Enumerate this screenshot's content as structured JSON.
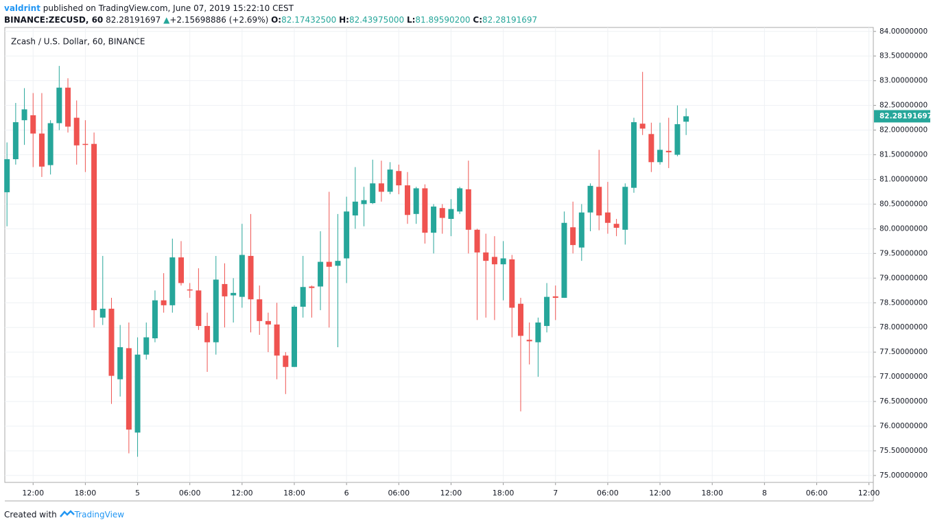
{
  "header": {
    "user": "valdrint",
    "published": "published on TradingView.com, June 07, 2019 15:22:10 CEST"
  },
  "quote": {
    "symbol": "BINANCE:ZECUSD, 60",
    "last": "82.28191697",
    "arrow": "▲",
    "change": "+2.15698886 (+2.69%)",
    "o_label": "O:",
    "o": "82.17432500",
    "h_label": "H:",
    "h": "82.43975000",
    "l_label": "L:",
    "l": "81.89590200",
    "c_label": "C:",
    "c": "82.28191697"
  },
  "footer": {
    "created": "Created with",
    "brand": "TradingView"
  },
  "chart_data": {
    "type": "candlestick",
    "title": "Zcash / U.S. Dollar, 60, BINANCE",
    "up_color": "#26a69a",
    "down_color": "#ef5350",
    "grid": true,
    "price_label": "82.28191697",
    "xlim": [
      -0.25,
      99.5
    ],
    "xticks": [
      {
        "value": 3,
        "label": "12:00"
      },
      {
        "value": 9,
        "label": "18:00"
      },
      {
        "value": 15,
        "label": "5"
      },
      {
        "value": 21,
        "label": "06:00"
      },
      {
        "value": 27,
        "label": "12:00"
      },
      {
        "value": 33,
        "label": "18:00"
      },
      {
        "value": 39,
        "label": "6"
      },
      {
        "value": 45,
        "label": "06:00"
      },
      {
        "value": 51,
        "label": "12:00"
      },
      {
        "value": 57,
        "label": "18:00"
      },
      {
        "value": 63,
        "label": "7"
      },
      {
        "value": 69,
        "label": "06:00"
      },
      {
        "value": 75,
        "label": "12:00"
      },
      {
        "value": 81,
        "label": "18:00"
      },
      {
        "value": 87,
        "label": "8"
      },
      {
        "value": 93,
        "label": "06:00"
      },
      {
        "value": 99,
        "label": "12:00"
      }
    ],
    "ylim": [
      74.86,
      84.08
    ],
    "yticks": [
      {
        "value": 75,
        "label": "75.00000000"
      },
      {
        "value": 75.5,
        "label": "75.50000000"
      },
      {
        "value": 76,
        "label": "76.00000000"
      },
      {
        "value": 76.5,
        "label": "76.50000000"
      },
      {
        "value": 77,
        "label": "77.00000000"
      },
      {
        "value": 77.5,
        "label": "77.50000000"
      },
      {
        "value": 78,
        "label": "78.00000000"
      },
      {
        "value": 78.5,
        "label": "78.50000000"
      },
      {
        "value": 79,
        "label": "79.00000000"
      },
      {
        "value": 79.5,
        "label": "79.50000000"
      },
      {
        "value": 80,
        "label": "80.00000000"
      },
      {
        "value": 80.5,
        "label": "80.50000000"
      },
      {
        "value": 81,
        "label": "81.00000000"
      },
      {
        "value": 81.5,
        "label": "81.50000000"
      },
      {
        "value": 82,
        "label": "82.00000000"
      },
      {
        "value": 82.5,
        "label": "82.50000000"
      },
      {
        "value": 83,
        "label": "83.00000000"
      },
      {
        "value": 83.5,
        "label": "83.50000000"
      },
      {
        "value": 84,
        "label": "84.00000000"
      }
    ],
    "open": [
      80.74,
      81.41,
      82.2,
      82.3,
      81.93,
      81.29,
      82.14,
      82.86,
      82.25,
      81.72,
      81.72,
      78.2,
      78.38,
      76.95,
      77.58,
      75.87,
      77.45,
      77.78,
      78.55,
      78.45,
      79.42,
      78.77,
      78.75,
      78.03,
      77.7,
      78.88,
      78.65,
      78.62,
      79.45,
      78.57,
      78.13,
      78.06,
      77.43,
      77.2,
      78.42,
      78.83,
      78.83,
      79.33,
      79.25,
      79.4,
      80.27,
      80.5,
      80.52,
      80.92,
      80.75,
      81.17,
      80.88,
      80.3,
      80.82,
      79.92,
      80.42,
      80.2,
      80.35,
      80.8,
      79.98,
      79.52,
      79.43,
      79.28,
      79.38,
      78.48,
      77.75,
      77.7,
      78.03,
      78.63,
      78.6,
      80.03,
      79.62,
      80.33,
      80.85,
      80.33,
      80.1,
      79.98,
      80.83,
      82.13,
      81.92,
      81.35,
      81.58,
      81.5,
      82.17
    ],
    "high": [
      81.75,
      82.55,
      82.85,
      82.75,
      82.75,
      82.2,
      83.3,
      83.05,
      82.6,
      82.2,
      81.95,
      79.45,
      78.6,
      78.05,
      78.1,
      77.8,
      78.1,
      78.75,
      79.1,
      79.8,
      79.75,
      78.9,
      79.2,
      78.3,
      79.45,
      79.3,
      79.0,
      80.1,
      80.3,
      78.85,
      78.3,
      78.5,
      77.5,
      78.45,
      79.45,
      78.85,
      79.95,
      80.75,
      80.3,
      80.65,
      81.25,
      80.85,
      81.4,
      81.38,
      81.35,
      81.3,
      81.15,
      80.85,
      80.9,
      80.5,
      80.5,
      80.6,
      80.85,
      81.38,
      80.0,
      79.9,
      79.85,
      79.75,
      79.47,
      78.6,
      78.1,
      78.2,
      78.9,
      78.85,
      80.35,
      80.55,
      80.5,
      80.92,
      81.6,
      80.95,
      80.2,
      80.92,
      82.25,
      83.18,
      82.15,
      82.15,
      82.25,
      82.5,
      82.44
    ],
    "low": [
      80.05,
      81.3,
      81.7,
      81.25,
      81.05,
      81.1,
      82.0,
      81.95,
      81.3,
      81.15,
      78.0,
      78.05,
      76.45,
      76.6,
      75.45,
      75.38,
      77.35,
      77.7,
      78.3,
      78.3,
      78.85,
      78.6,
      77.95,
      77.1,
      77.45,
      78.0,
      78.1,
      78.4,
      77.9,
      77.85,
      77.5,
      76.95,
      76.65,
      77.2,
      78.2,
      78.2,
      78.35,
      78.0,
      77.6,
      78.9,
      80.0,
      80.05,
      80.5,
      80.55,
      80.7,
      80.7,
      80.1,
      80.1,
      79.7,
      79.5,
      79.9,
      79.85,
      80.3,
      79.5,
      78.15,
      78.2,
      78.15,
      78.55,
      77.8,
      76.3,
      77.25,
      77.0,
      77.9,
      78.15,
      78.6,
      79.5,
      79.35,
      79.95,
      79.97,
      79.9,
      79.85,
      79.68,
      80.73,
      81.9,
      81.15,
      81.3,
      81.23,
      81.47,
      81.9
    ],
    "close": [
      81.41,
      82.16,
      82.42,
      81.93,
      81.26,
      82.14,
      82.86,
      82.07,
      81.69,
      81.7,
      78.35,
      78.38,
      77.02,
      77.6,
      75.93,
      77.45,
      77.8,
      78.55,
      78.45,
      79.42,
      78.9,
      78.75,
      78.03,
      77.7,
      78.97,
      78.63,
      78.7,
      79.47,
      78.57,
      78.13,
      78.06,
      77.43,
      77.2,
      78.42,
      78.82,
      78.8,
      79.33,
      79.23,
      79.35,
      80.35,
      80.55,
      80.58,
      80.92,
      80.75,
      81.2,
      80.88,
      80.28,
      80.82,
      79.92,
      80.45,
      80.22,
      80.4,
      80.82,
      79.98,
      79.52,
      79.35,
      79.28,
      79.4,
      78.4,
      77.83,
      77.72,
      78.1,
      78.62,
      78.6,
      80.12,
      79.67,
      80.33,
      80.87,
      80.27,
      80.12,
      80.02,
      80.85,
      82.16,
      82.03,
      81.35,
      81.6,
      81.55,
      82.12,
      82.28
    ]
  }
}
